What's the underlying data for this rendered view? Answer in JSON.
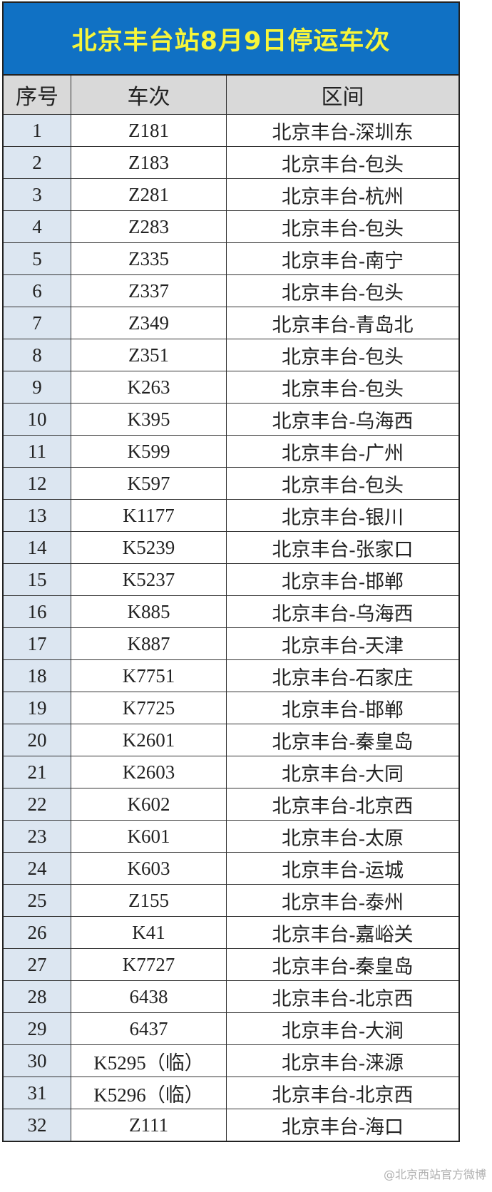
{
  "title": "北京丰台站8月9日停运车次",
  "headers": [
    "序号",
    "车次",
    "区间"
  ],
  "rows": [
    [
      "1",
      "Z181",
      "北京丰台-深圳东"
    ],
    [
      "2",
      "Z183",
      "北京丰台-包头"
    ],
    [
      "3",
      "Z281",
      "北京丰台-杭州"
    ],
    [
      "4",
      "Z283",
      "北京丰台-包头"
    ],
    [
      "5",
      "Z335",
      "北京丰台-南宁"
    ],
    [
      "6",
      "Z337",
      "北京丰台-包头"
    ],
    [
      "7",
      "Z349",
      "北京丰台-青岛北"
    ],
    [
      "8",
      "Z351",
      "北京丰台-包头"
    ],
    [
      "9",
      "K263",
      "北京丰台-包头"
    ],
    [
      "10",
      "K395",
      "北京丰台-乌海西"
    ],
    [
      "11",
      "K599",
      "北京丰台-广州"
    ],
    [
      "12",
      "K597",
      "北京丰台-包头"
    ],
    [
      "13",
      "K1177",
      "北京丰台-银川"
    ],
    [
      "14",
      "K5239",
      "北京丰台-张家口"
    ],
    [
      "15",
      "K5237",
      "北京丰台-邯郸"
    ],
    [
      "16",
      "K885",
      "北京丰台-乌海西"
    ],
    [
      "17",
      "K887",
      "北京丰台-天津"
    ],
    [
      "18",
      "K7751",
      "北京丰台-石家庄"
    ],
    [
      "19",
      "K7725",
      "北京丰台-邯郸"
    ],
    [
      "20",
      "K2601",
      "北京丰台-秦皇岛"
    ],
    [
      "21",
      "K2603",
      "北京丰台-大同"
    ],
    [
      "22",
      "K602",
      "北京丰台-北京西"
    ],
    [
      "23",
      "K601",
      "北京丰台-太原"
    ],
    [
      "24",
      "K603",
      "北京丰台-运城"
    ],
    [
      "25",
      "Z155",
      "北京丰台-泰州"
    ],
    [
      "26",
      "K41",
      "北京丰台-嘉峪关"
    ],
    [
      "27",
      "K7727",
      "北京丰台-秦皇岛"
    ],
    [
      "28",
      "6438",
      "北京丰台-北京西"
    ],
    [
      "29",
      "6437",
      "北京丰台-大涧"
    ],
    [
      "30",
      "K5295（临）",
      "北京丰台-涞源"
    ],
    [
      "31",
      "K5296（临）",
      "北京丰台-北京西"
    ],
    [
      "32",
      "Z111",
      "北京丰台-海口"
    ]
  ],
  "watermark": "@北京西站官方微博",
  "colors": {
    "title_bg": "#1071c4",
    "title_text": "#f7f53a",
    "header_bg": "#d9d9d9",
    "index_col_bg": "#dce6f1"
  }
}
